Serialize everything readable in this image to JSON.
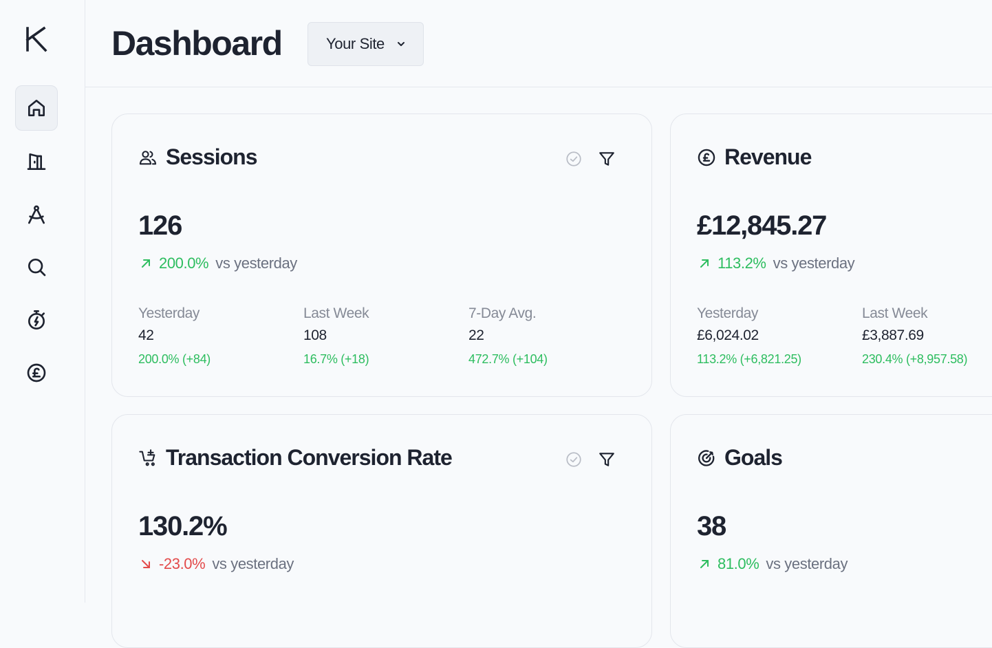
{
  "app": {
    "logo_letter": "K"
  },
  "sidebar": {
    "items": [
      {
        "name": "home",
        "active": true
      },
      {
        "name": "exit"
      },
      {
        "name": "design"
      },
      {
        "name": "search"
      },
      {
        "name": "timer"
      },
      {
        "name": "pound"
      }
    ]
  },
  "header": {
    "title": "Dashboard",
    "site_select": {
      "value": "Your Site"
    }
  },
  "cards": {
    "sessions": {
      "title": "Sessions",
      "value": "126",
      "delta": "200.0%",
      "delta_suffix": "vs yesterday",
      "stats": [
        {
          "label": "Yesterday",
          "value": "42",
          "delta": "200.0% (+84)"
        },
        {
          "label": "Last Week",
          "value": "108",
          "delta": "16.7% (+18)"
        },
        {
          "label": "7-Day Avg.",
          "value": "22",
          "delta": "472.7% (+104)"
        }
      ]
    },
    "revenue": {
      "title": "Revenue",
      "value": "£12,845.27",
      "delta": "113.2%",
      "delta_suffix": "vs yesterday",
      "stats": [
        {
          "label": "Yesterday",
          "value": "£6,024.02",
          "delta": "113.2% (+6,821.25)"
        },
        {
          "label": "Last Week",
          "value": "£3,887.69",
          "delta": "230.4% (+8,957.58)"
        }
      ]
    },
    "conversion": {
      "title": "Transaction Conversion Rate",
      "value": "130.2%",
      "delta": "-23.0%",
      "delta_suffix": "vs yesterday"
    },
    "goals": {
      "title": "Goals",
      "value": "38",
      "delta": "81.0%",
      "delta_suffix": "vs yesterday"
    }
  },
  "colors": {
    "positive": "#2dbd5f",
    "negative": "#e34a4a",
    "text": "#1e2330",
    "muted": "#6b7180"
  }
}
